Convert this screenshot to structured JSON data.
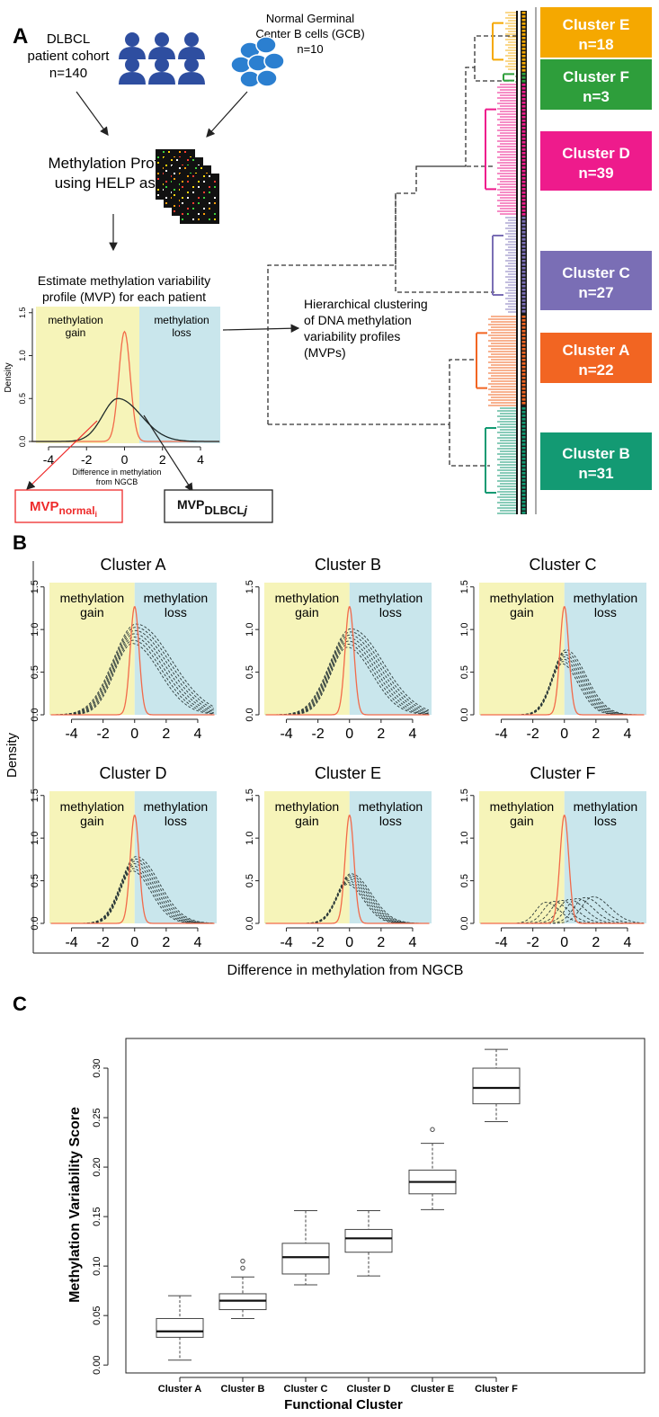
{
  "panel_a": {
    "letter": "A",
    "cohort": {
      "line1": "DLBCL",
      "line2": "patient cohort",
      "line3": "n=140"
    },
    "normal": {
      "line1": "Normal Germinal",
      "line2": "Center B cells (GCB)",
      "line3": "n=10"
    },
    "profiling": {
      "line1": "Methylation Profiling",
      "line2": "using HELP assay"
    },
    "estimate": {
      "line1": "Estimate methylation variability",
      "line2": "profile (MVP) for each patient"
    },
    "hier": {
      "line1": "Hierarchical clustering",
      "line2": "of DNA methylation",
      "line3": "variability profiles",
      "line4": "(MVPs)"
    },
    "mvp_normal": {
      "main": "MVP",
      "sub": "normal",
      "subsub": "i"
    },
    "mvp_dlbcl": {
      "main": "MVP",
      "sub": "DLBCL",
      "subsub": "j"
    },
    "inset": {
      "gain": [
        "methylation",
        "gain"
      ],
      "loss": [
        "methylation",
        "loss"
      ],
      "ylabel": "Density",
      "xlabel1": "Difference in methylation",
      "xlabel2": "from NGCB",
      "xticks": [
        "-4",
        "-2",
        "0",
        "2",
        "4"
      ],
      "yticks": [
        "0.0",
        "0.5",
        "1.0",
        "1.5"
      ]
    },
    "clusters": [
      {
        "name": "Cluster E",
        "n": "n=18",
        "color": "#f5a800"
      },
      {
        "name": "Cluster F",
        "n": "n=3",
        "color": "#2e9e3b"
      },
      {
        "name": "Cluster D",
        "n": "n=39",
        "color": "#ee1b8c"
      },
      {
        "name": "Cluster C",
        "n": "n=27",
        "color": "#7a6eb5"
      },
      {
        "name": "Cluster A",
        "n": "n=22",
        "color": "#f26522"
      },
      {
        "name": "Cluster B",
        "n": "n=31",
        "color": "#139a73"
      }
    ]
  },
  "panel_b": {
    "letter": "B",
    "ylabel": "Density",
    "xlabel": "Difference in methylation from NGCB",
    "gain": [
      "methylation",
      "gain"
    ],
    "loss": [
      "methylation",
      "loss"
    ],
    "xticks": [
      "-4",
      "-2",
      "0",
      "2",
      "4"
    ],
    "yticks": [
      "0.0",
      "0.5",
      "1.0",
      "1.5"
    ],
    "plots": [
      {
        "title": "Cluster A",
        "peak": 0.95,
        "spread": 0.9
      },
      {
        "title": "Cluster B",
        "peak": 0.9,
        "spread": 0.8
      },
      {
        "title": "Cluster C",
        "peak": 0.68,
        "spread": 0.4
      },
      {
        "title": "Cluster D",
        "peak": 0.7,
        "spread": 0.5
      },
      {
        "title": "Cluster E",
        "peak": 0.52,
        "spread": 0.4
      },
      {
        "title": "Cluster F",
        "peak": 0.28,
        "spread": 0.3
      }
    ]
  },
  "panel_c": {
    "letter": "C",
    "chart_data": {
      "type": "box",
      "title": "",
      "xlabel": "Functional Cluster",
      "ylabel": "Methylation Variability Score",
      "ylim": [
        0.0,
        0.33
      ],
      "yticks": [
        "0.00",
        "0.05",
        "0.10",
        "0.15",
        "0.20",
        "0.25",
        "0.30"
      ],
      "categories": [
        "Cluster A",
        "Cluster B",
        "Cluster C",
        "Cluster D",
        "Cluster E",
        "Cluster F"
      ],
      "boxes": [
        {
          "min": 0.005,
          "q1": 0.028,
          "median": 0.034,
          "q3": 0.047,
          "max": 0.07,
          "outliers": []
        },
        {
          "min": 0.047,
          "q1": 0.056,
          "median": 0.065,
          "q3": 0.072,
          "max": 0.089,
          "outliers": [
            0.098,
            0.105
          ]
        },
        {
          "min": 0.081,
          "q1": 0.092,
          "median": 0.109,
          "q3": 0.123,
          "max": 0.156,
          "outliers": []
        },
        {
          "min": 0.09,
          "q1": 0.114,
          "median": 0.128,
          "q3": 0.137,
          "max": 0.156,
          "outliers": []
        },
        {
          "min": 0.157,
          "q1": 0.173,
          "median": 0.185,
          "q3": 0.197,
          "max": 0.224,
          "outliers": [
            0.238
          ]
        },
        {
          "min": 0.246,
          "q1": 0.264,
          "median": 0.28,
          "q3": 0.3,
          "max": 0.319,
          "outliers": []
        }
      ]
    }
  }
}
